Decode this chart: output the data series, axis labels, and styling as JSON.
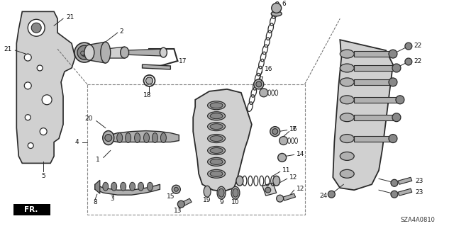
{
  "bg_color": "#ffffff",
  "fig_width": 6.4,
  "fig_height": 3.19,
  "dpi": 100,
  "diagram_code": "SZA4A0810",
  "lc": "#2a2a2a",
  "tc": "#111111",
  "fc_light": "#d0d0d0",
  "fc_mid": "#b0b0b0",
  "fc_dark": "#888888",
  "fc_white": "#ffffff"
}
